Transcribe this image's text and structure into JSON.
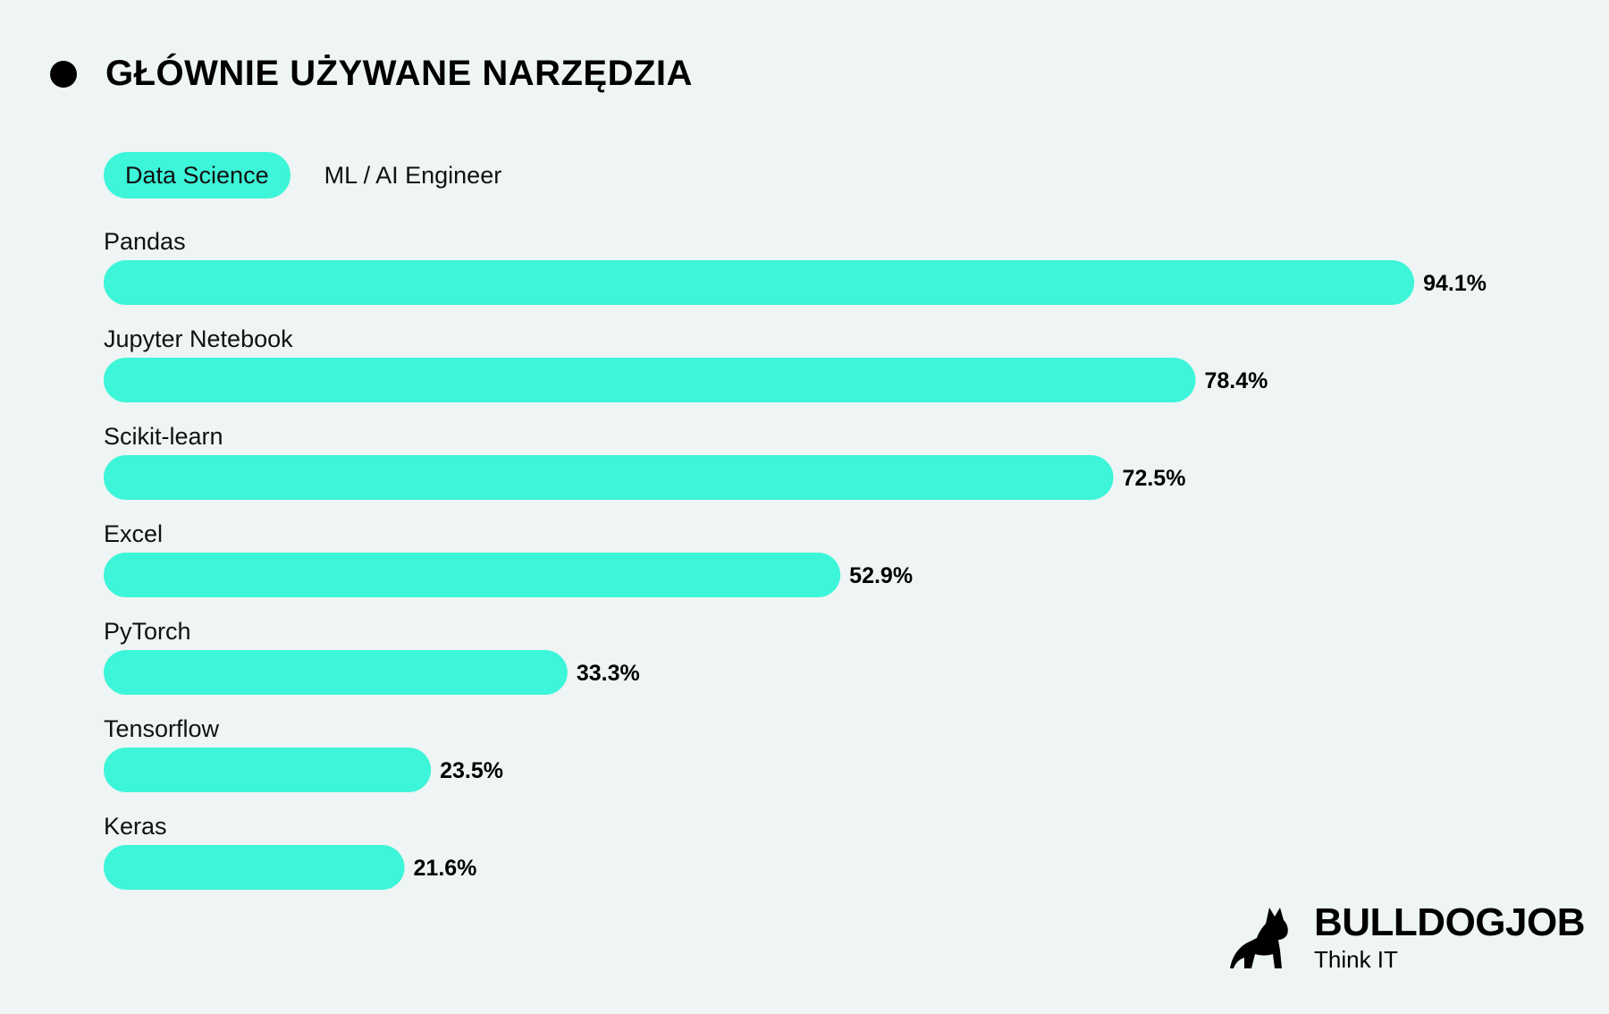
{
  "header": {
    "title": "GŁÓWNIE UŻYWANE NARZĘDZIA"
  },
  "tabs": [
    {
      "label": "Data Science",
      "active": true
    },
    {
      "label": "ML / AI Engineer",
      "active": false
    }
  ],
  "colors": {
    "bar": "#3df5d9",
    "background": "#eef5f4",
    "text": "#111111"
  },
  "chart_data": {
    "type": "bar",
    "orientation": "horizontal",
    "categories": [
      "Pandas",
      "Jupyter Netebook",
      "Scikit-learn",
      "Excel",
      "PyTorch",
      "Tensorflow",
      "Keras"
    ],
    "values": [
      94.1,
      78.4,
      72.5,
      52.9,
      33.3,
      23.5,
      21.6
    ],
    "value_labels": [
      "94.1%",
      "78.4%",
      "72.5%",
      "52.9%",
      "33.3%",
      "23.5%",
      "21.6%"
    ],
    "unit": "%",
    "xlim": [
      0,
      100
    ],
    "grid": false,
    "legend": "none"
  },
  "logo": {
    "icon": "bulldog-icon",
    "name": "BULLDOGJOB",
    "tagline": "Think IT"
  }
}
